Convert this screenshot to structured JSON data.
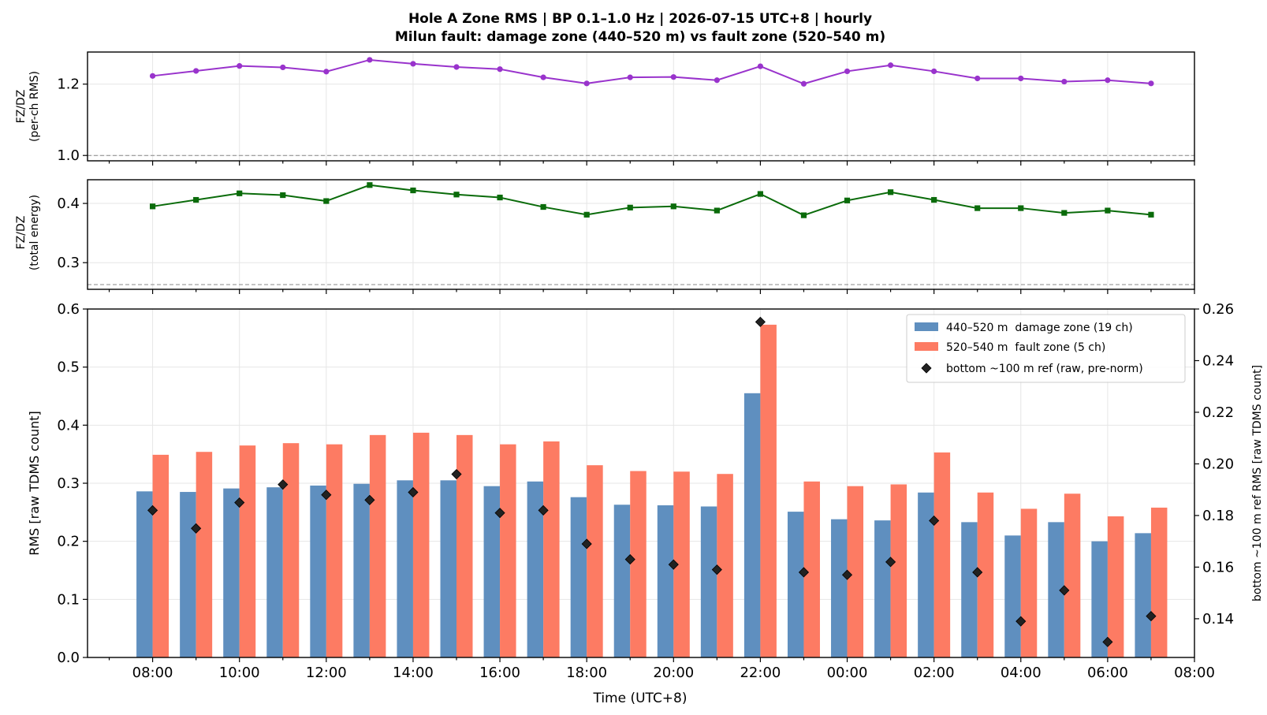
{
  "title_line1": "Hole A Zone RMS  |  BP 0.1–1.0 Hz  |  2026-07-15 UTC+8  |  hourly",
  "title_line2": "Milun fault: damage zone (440–520 m) vs fault zone (520–540 m)",
  "colors": {
    "damage": "#5f8fbf",
    "fault": "#fd7b63",
    "ref": "#222222",
    "ratio_rms": "#9933cc",
    "ratio_energy": "#0a6b0a",
    "grid": "#e6e6e6"
  },
  "chart_data": [
    {
      "type": "line",
      "ylabel": [
        "FZ/DZ",
        "(per-ch RMS)"
      ],
      "x": [
        "08:00",
        "09:00",
        "10:00",
        "11:00",
        "12:00",
        "13:00",
        "14:00",
        "15:00",
        "16:00",
        "17:00",
        "18:00",
        "19:00",
        "20:00",
        "21:00",
        "22:00",
        "23:00",
        "00:00",
        "01:00",
        "02:00",
        "03:00",
        "04:00",
        "05:00",
        "06:00",
        "07:00"
      ],
      "series": [
        {
          "values": [
            1.223,
            1.237,
            1.251,
            1.247,
            1.235,
            1.268,
            1.257,
            1.248,
            1.242,
            1.219,
            1.202,
            1.219,
            1.22,
            1.211,
            1.25,
            1.201,
            1.236,
            1.253,
            1.236,
            1.216,
            1.216,
            1.207,
            1.211,
            1.202
          ]
        }
      ],
      "reference_line": 1.0,
      "ylim": [
        0.985,
        1.29
      ],
      "yticks": [
        1.0,
        1.2
      ],
      "ytick_labels": [
        "1.0",
        "1.2"
      ],
      "grid": true
    },
    {
      "type": "line",
      "ylabel": [
        "FZ/DZ",
        "(total energy)"
      ],
      "x": [
        "08:00",
        "09:00",
        "10:00",
        "11:00",
        "12:00",
        "13:00",
        "14:00",
        "15:00",
        "16:00",
        "17:00",
        "18:00",
        "19:00",
        "20:00",
        "21:00",
        "22:00",
        "23:00",
        "00:00",
        "01:00",
        "02:00",
        "03:00",
        "04:00",
        "05:00",
        "06:00",
        "07:00"
      ],
      "series": [
        {
          "values": [
            0.395,
            0.406,
            0.417,
            0.414,
            0.404,
            0.431,
            0.422,
            0.415,
            0.41,
            0.394,
            0.381,
            0.393,
            0.395,
            0.388,
            0.416,
            0.38,
            0.405,
            0.419,
            0.406,
            0.392,
            0.392,
            0.384,
            0.388,
            0.381
          ]
        }
      ],
      "reference_line": 0.263,
      "ylim": [
        0.255,
        0.44
      ],
      "yticks": [
        0.3,
        0.4
      ],
      "ytick_labels": [
        "0.3",
        "0.4"
      ],
      "grid": true
    },
    {
      "type": "bar",
      "xlabel": "Time (UTC+8)",
      "ylabel": "RMS  [raw TDMS count]",
      "y2label": "bottom ~100 m ref RMS  [raw TDMS count]",
      "categories": [
        "08:00",
        "09:00",
        "10:00",
        "11:00",
        "12:00",
        "13:00",
        "14:00",
        "15:00",
        "16:00",
        "17:00",
        "18:00",
        "19:00",
        "20:00",
        "21:00",
        "22:00",
        "23:00",
        "00:00",
        "01:00",
        "02:00",
        "03:00",
        "04:00",
        "05:00",
        "06:00",
        "07:00"
      ],
      "series": [
        {
          "name": "440–520 m  damage zone (19 ch)",
          "axis": "left",
          "values": [
            0.286,
            0.285,
            0.291,
            0.293,
            0.296,
            0.299,
            0.305,
            0.305,
            0.295,
            0.303,
            0.276,
            0.263,
            0.262,
            0.26,
            0.455,
            0.251,
            0.238,
            0.236,
            0.284,
            0.233,
            0.21,
            0.233,
            0.2,
            0.214
          ]
        },
        {
          "name": "520–540 m  fault zone (5 ch)",
          "axis": "left",
          "values": [
            0.349,
            0.354,
            0.365,
            0.369,
            0.367,
            0.383,
            0.387,
            0.383,
            0.367,
            0.372,
            0.331,
            0.321,
            0.32,
            0.316,
            0.573,
            0.303,
            0.295,
            0.298,
            0.353,
            0.284,
            0.256,
            0.282,
            0.243,
            0.258
          ]
        },
        {
          "name": "bottom ~100 m ref (raw, pre-norm)",
          "axis": "right",
          "marker": "diamond",
          "values": [
            0.182,
            0.175,
            0.185,
            0.192,
            0.188,
            0.186,
            0.189,
            0.196,
            0.181,
            0.182,
            0.169,
            0.163,
            0.161,
            0.159,
            0.255,
            0.158,
            0.157,
            0.162,
            0.178,
            0.158,
            0.139,
            0.151,
            0.131,
            0.141
          ]
        }
      ],
      "ylim": [
        0,
        0.6
      ],
      "y2lim": [
        0.125,
        0.26
      ],
      "yticks": [
        0.0,
        0.1,
        0.2,
        0.3,
        0.4,
        0.5,
        0.6
      ],
      "ytick_labels": [
        "0.0",
        "0.1",
        "0.2",
        "0.3",
        "0.4",
        "0.5",
        "0.6"
      ],
      "y2ticks": [
        0.14,
        0.16,
        0.18,
        0.2,
        0.22,
        0.24,
        0.26
      ],
      "y2tick_labels": [
        "0.14",
        "0.16",
        "0.18",
        "0.20",
        "0.22",
        "0.24",
        "0.26"
      ],
      "xtick_labels": [
        "08:00",
        "10:00",
        "12:00",
        "14:00",
        "16:00",
        "18:00",
        "20:00",
        "22:00",
        "00:00",
        "02:00",
        "04:00",
        "06:00",
        "08:00"
      ],
      "legend_position": "top-right",
      "grid": true
    }
  ]
}
